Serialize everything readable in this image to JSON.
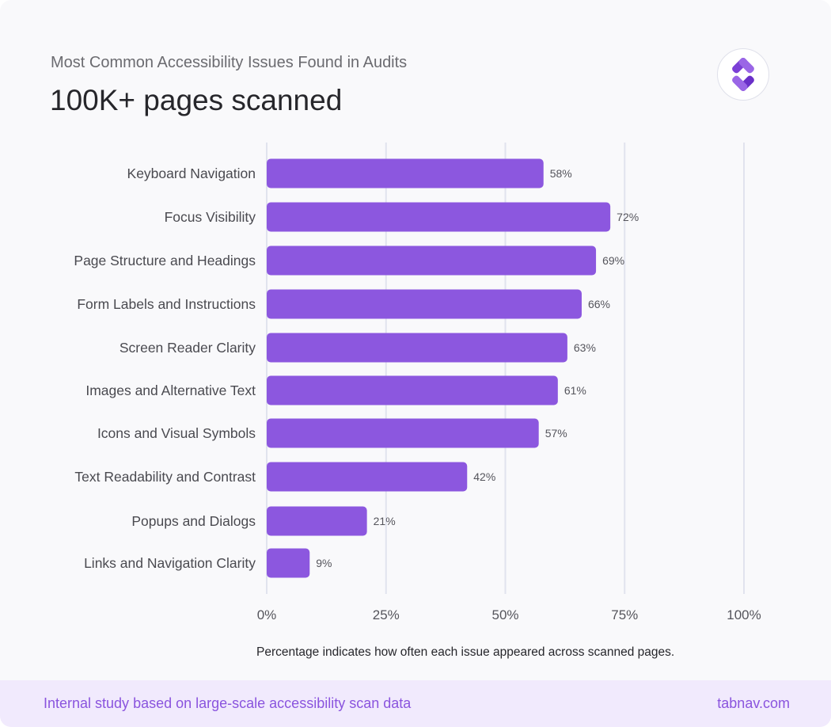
{
  "header": {
    "subtitle": "Most Common Accessibility Issues Found in Audits",
    "title": "100K+ pages scanned",
    "logo": "tabnav-logo"
  },
  "chart_data": {
    "type": "bar",
    "orientation": "horizontal",
    "categories": [
      "Keyboard Navigation",
      "Focus Visibility",
      "Page Structure and Headings",
      "Form Labels and Instructions",
      "Screen Reader Clarity",
      "Images and Alternative Text",
      "Icons and Visual Symbols",
      "Text Readability and Contrast",
      "Popups and Dialogs",
      "Links and Navigation Clarity"
    ],
    "values": [
      58,
      72,
      69,
      66,
      63,
      61,
      57,
      42,
      21,
      9
    ],
    "data_labels": [
      "58%",
      "72%",
      "69%",
      "66%",
      "63%",
      "61%",
      "57%",
      "42%",
      "21%",
      "9%"
    ],
    "xlim": [
      0,
      100
    ],
    "x_ticks": [
      0,
      25,
      50,
      75,
      100
    ],
    "x_tick_labels": [
      "0%",
      "25%",
      "50%",
      "75%",
      "100%"
    ],
    "grid": "vertical",
    "bar_color": "#8c57df",
    "note": "Percentage indicates how often each issue appeared across scanned pages."
  },
  "footer": {
    "left": "Internal study based on large-scale accessibility scan data",
    "right": "tabnav.com"
  }
}
